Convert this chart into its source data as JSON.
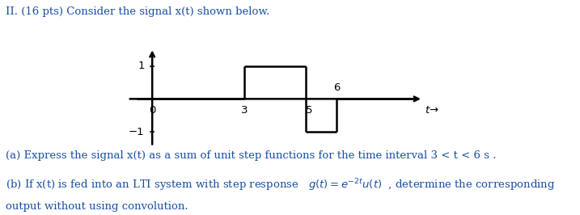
{
  "title_text": "II. (16 pts) Consider the signal x(t) shown below.",
  "part_a": "(a) Express the signal x(t) as a sum of unit step functions for the time interval 3 < t < 6 s .",
  "part_b_line1": "(b) If x(t) is fed into an LTI system with step response   $g(t)=e^{-2t}u(t)$  , determine the corresponding",
  "part_b_line2": "output without using convolution.",
  "signal_segments": [
    {
      "x_start": -0.5,
      "x_end": 3,
      "y": 0
    },
    {
      "x_start": 3,
      "x_end": 5,
      "y": 1
    },
    {
      "x_start": 5,
      "x_end": 6,
      "y": -1
    },
    {
      "x_start": 6,
      "x_end": 8.5,
      "y": 0
    }
  ],
  "xlim": [
    -0.8,
    9.0
  ],
  "ylim": [
    -1.7,
    1.7
  ],
  "axis_color": "#000000",
  "signal_color": "#000000",
  "text_color": "#1a4fa0",
  "background_color": "#ffffff",
  "font_size_title": 9.5,
  "font_size_labels": 9.5,
  "font_size_ticks": 9.5,
  "line_width": 1.8,
  "axis_lw": 1.8
}
